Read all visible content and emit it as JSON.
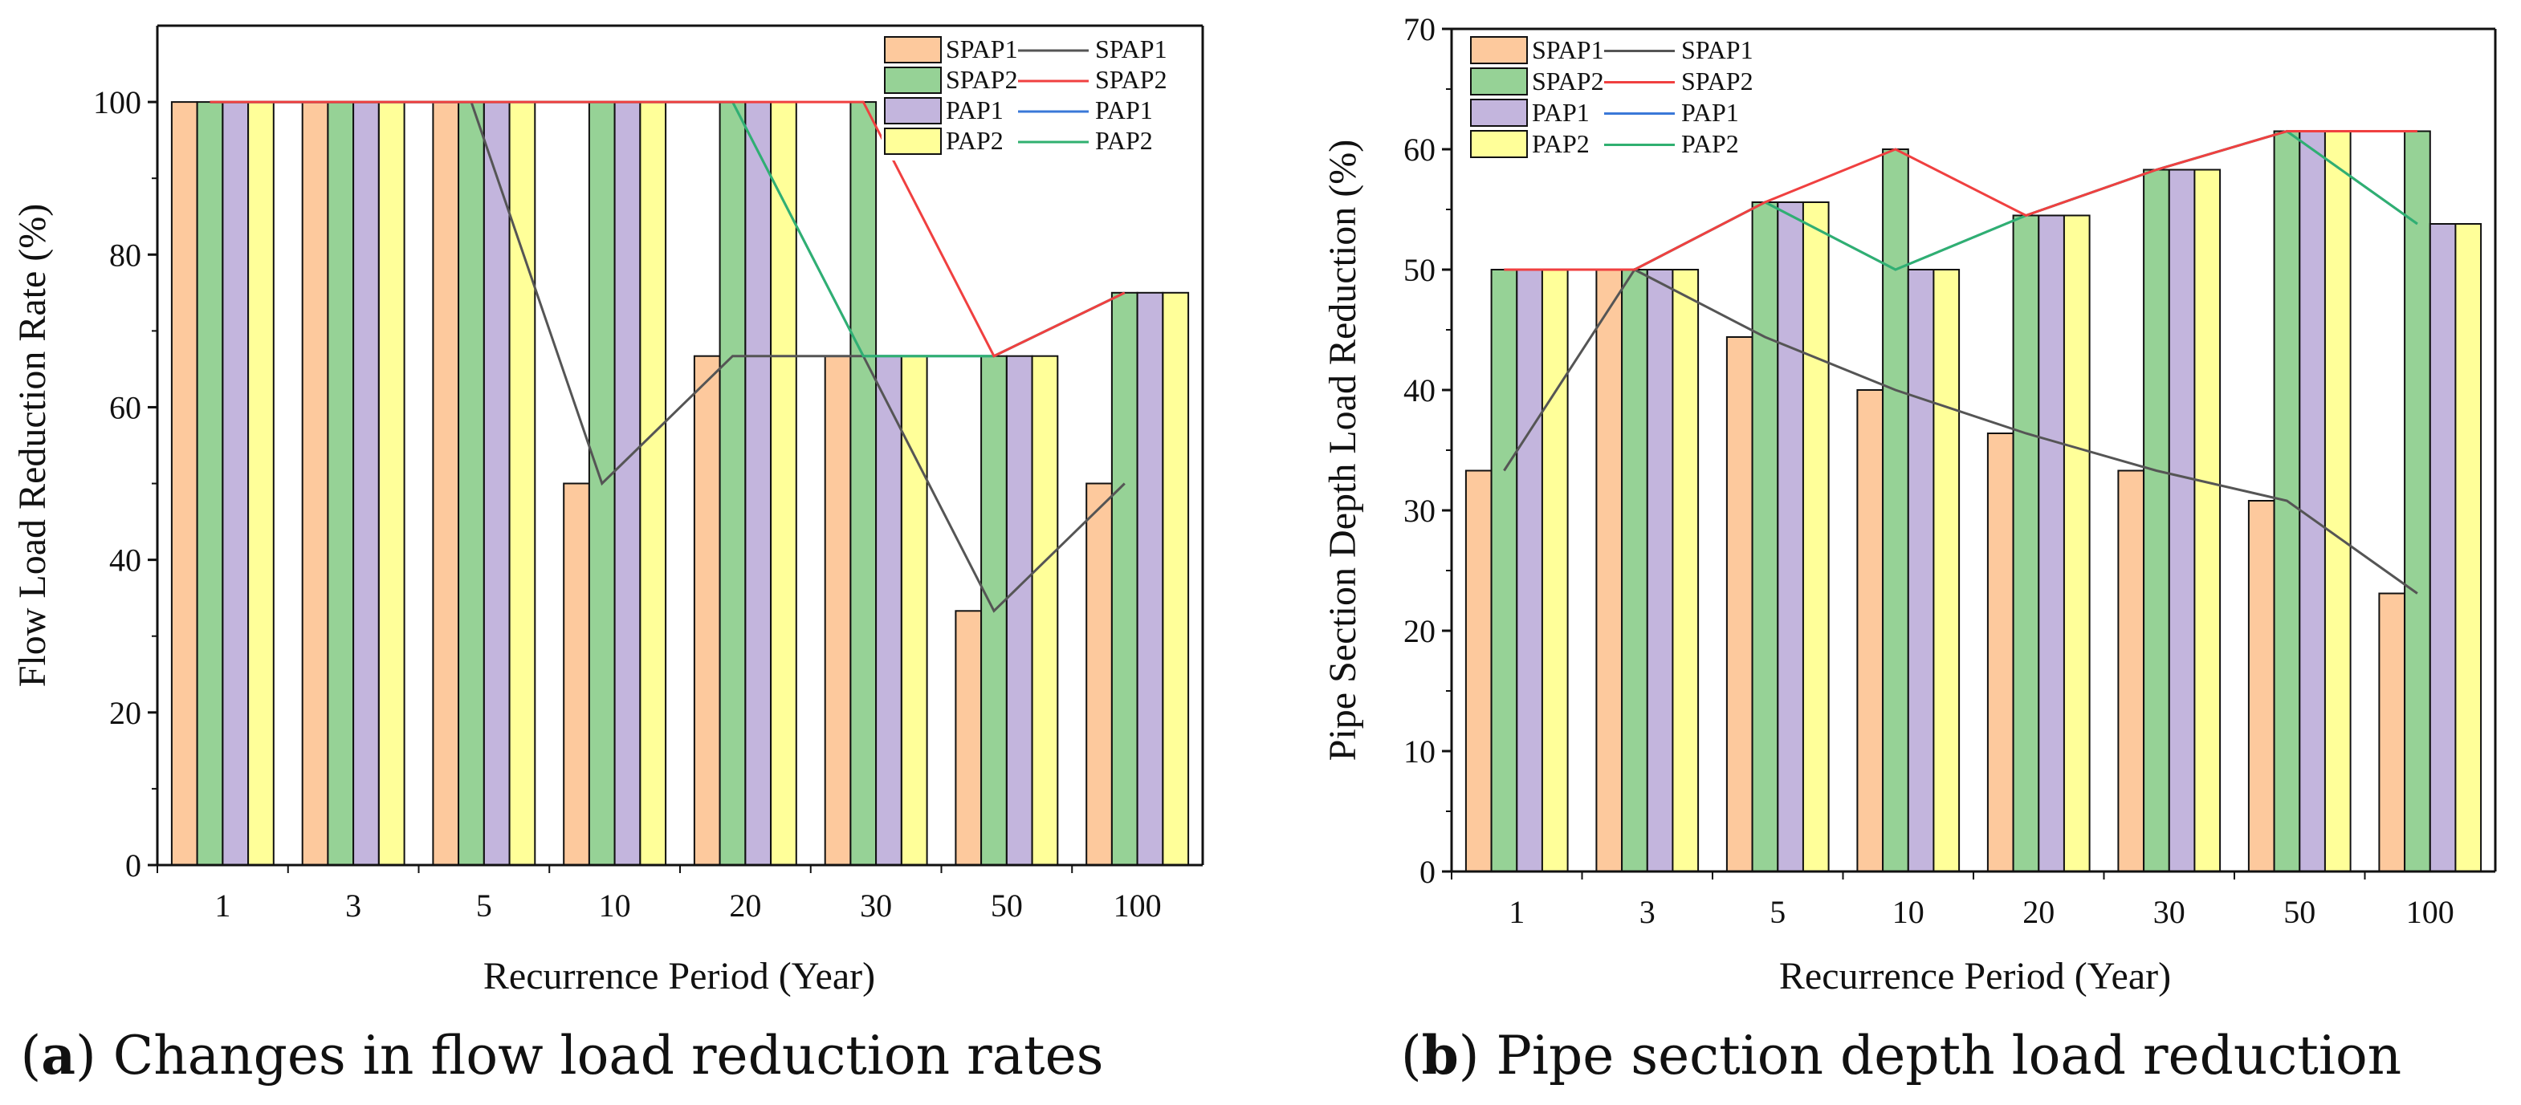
{
  "colors": {
    "SPAP1": "#FDC99D",
    "SPAP2": "#96D296",
    "PAP1": "#C3B5DD",
    "PAP2": "#FFFF99",
    "line_SPAP1": "#555555",
    "line_SPAP2": "#F04040",
    "line_PAP1": "#3A78D8",
    "line_PAP2": "#30B070"
  },
  "captions": {
    "a_letter": "a",
    "a_text": " Changes in flow load reduction rates",
    "b_letter": "b",
    "b_text": " Pipe section depth load reduction",
    "open": "(",
    "close": ")"
  },
  "chart_data": [
    {
      "id": "a",
      "type": "bar",
      "xlabel": "Recurrence Period (Year)",
      "ylabel": "Flow Load Reduction Rate (%)",
      "ylim": [
        0,
        110
      ],
      "yticks": [
        0,
        20,
        40,
        60,
        80,
        100
      ],
      "categories": [
        "1",
        "3",
        "5",
        "10",
        "20",
        "30",
        "50",
        "100"
      ],
      "legend_position": "top-right",
      "series": [
        {
          "name": "SPAP1",
          "values": [
            100,
            100,
            100,
            50,
            66.7,
            66.7,
            33.3,
            50
          ]
        },
        {
          "name": "SPAP2",
          "values": [
            100,
            100,
            100,
            100,
            100,
            100,
            66.7,
            75
          ]
        },
        {
          "name": "PAP1",
          "values": [
            100,
            100,
            100,
            100,
            100,
            66.7,
            66.7,
            75
          ]
        },
        {
          "name": "PAP2",
          "values": [
            100,
            100,
            100,
            100,
            100,
            66.7,
            66.7,
            75
          ]
        }
      ],
      "lines": [
        {
          "name": "SPAP1",
          "values": [
            100,
            100,
            100,
            50,
            66.7,
            66.7,
            33.3,
            50
          ]
        },
        {
          "name": "SPAP2",
          "values": [
            100,
            100,
            100,
            100,
            100,
            100,
            66.7,
            75
          ]
        },
        {
          "name": "PAP1",
          "values": [
            100,
            100,
            100,
            100,
            100,
            66.7,
            66.7,
            75
          ]
        },
        {
          "name": "PAP2",
          "values": [
            100,
            100,
            100,
            100,
            100,
            66.7,
            66.7,
            75
          ]
        }
      ]
    },
    {
      "id": "b",
      "type": "bar",
      "xlabel": "Recurrence Period (Year)",
      "ylabel": "Pipe Section Depth Load Reduction (%)",
      "ylim": [
        0,
        70
      ],
      "yticks": [
        0,
        10,
        20,
        30,
        40,
        50,
        60,
        70
      ],
      "categories": [
        "1",
        "3",
        "5",
        "10",
        "20",
        "30",
        "50",
        "100"
      ],
      "legend_position": "top-left",
      "series": [
        {
          "name": "SPAP1",
          "values": [
            33.3,
            50,
            44.4,
            40,
            36.4,
            33.3,
            30.8,
            23.1
          ]
        },
        {
          "name": "SPAP2",
          "values": [
            50,
            50,
            55.6,
            60,
            54.5,
            58.3,
            61.5,
            61.5
          ]
        },
        {
          "name": "PAP1",
          "values": [
            50,
            50,
            55.6,
            50,
            54.5,
            58.3,
            61.5,
            53.8
          ]
        },
        {
          "name": "PAP2",
          "values": [
            50,
            50,
            55.6,
            50,
            54.5,
            58.3,
            61.5,
            53.8
          ]
        }
      ],
      "lines": [
        {
          "name": "SPAP1",
          "values": [
            33.3,
            50,
            44.4,
            40,
            36.4,
            33.3,
            30.8,
            23.1
          ]
        },
        {
          "name": "SPAP2",
          "values": [
            50,
            50,
            55.6,
            60,
            54.5,
            58.3,
            61.5,
            61.5
          ]
        },
        {
          "name": "PAP1",
          "values": [
            50,
            50,
            55.6,
            50,
            54.5,
            58.3,
            61.5,
            53.8
          ]
        },
        {
          "name": "PAP2",
          "values": [
            50,
            50,
            55.6,
            50,
            54.5,
            58.3,
            61.5,
            53.8
          ]
        }
      ]
    }
  ]
}
